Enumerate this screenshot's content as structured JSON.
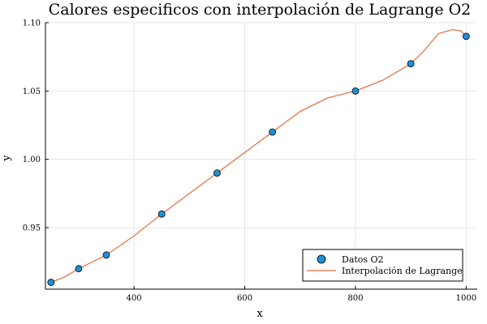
{
  "chart_data": {
    "type": "scatter",
    "title": "Calores especificos con interpolación de Lagrange O2",
    "xlabel": "x",
    "ylabel": "y",
    "xlim": [
      240,
      1020
    ],
    "ylim": [
      0.905,
      1.1
    ],
    "xticks": [
      400,
      600,
      800,
      1000
    ],
    "xtick_labels": [
      "400",
      "600",
      "800",
      "1000"
    ],
    "yticks": [
      0.95,
      1.0,
      1.05,
      1.1
    ],
    "ytick_labels": [
      "0.95",
      "1.00",
      "1.05",
      "1.10"
    ],
    "grid": true,
    "legend_position": "bottom-right",
    "series": [
      {
        "name": "Datos O2",
        "kind": "scatter",
        "color": "#1f8fd6",
        "x": [
          250,
          300,
          350,
          450,
          550,
          650,
          800,
          900,
          1000
        ],
        "y": [
          0.91,
          0.92,
          0.93,
          0.96,
          0.99,
          1.02,
          1.05,
          1.07,
          1.09
        ]
      },
      {
        "name": "Interpolación de Lagrange",
        "kind": "line",
        "color": "#e26a3f",
        "x": [
          250,
          275,
          300,
          325,
          350,
          400,
          450,
          500,
          550,
          600,
          650,
          700,
          750,
          800,
          850,
          900,
          925,
          950,
          975,
          990,
          1000
        ],
        "y": [
          0.91,
          0.914,
          0.92,
          0.925,
          0.93,
          0.944,
          0.96,
          0.975,
          0.99,
          1.005,
          1.02,
          1.035,
          1.045,
          1.05,
          1.058,
          1.07,
          1.08,
          1.092,
          1.095,
          1.094,
          1.09
        ]
      }
    ]
  }
}
